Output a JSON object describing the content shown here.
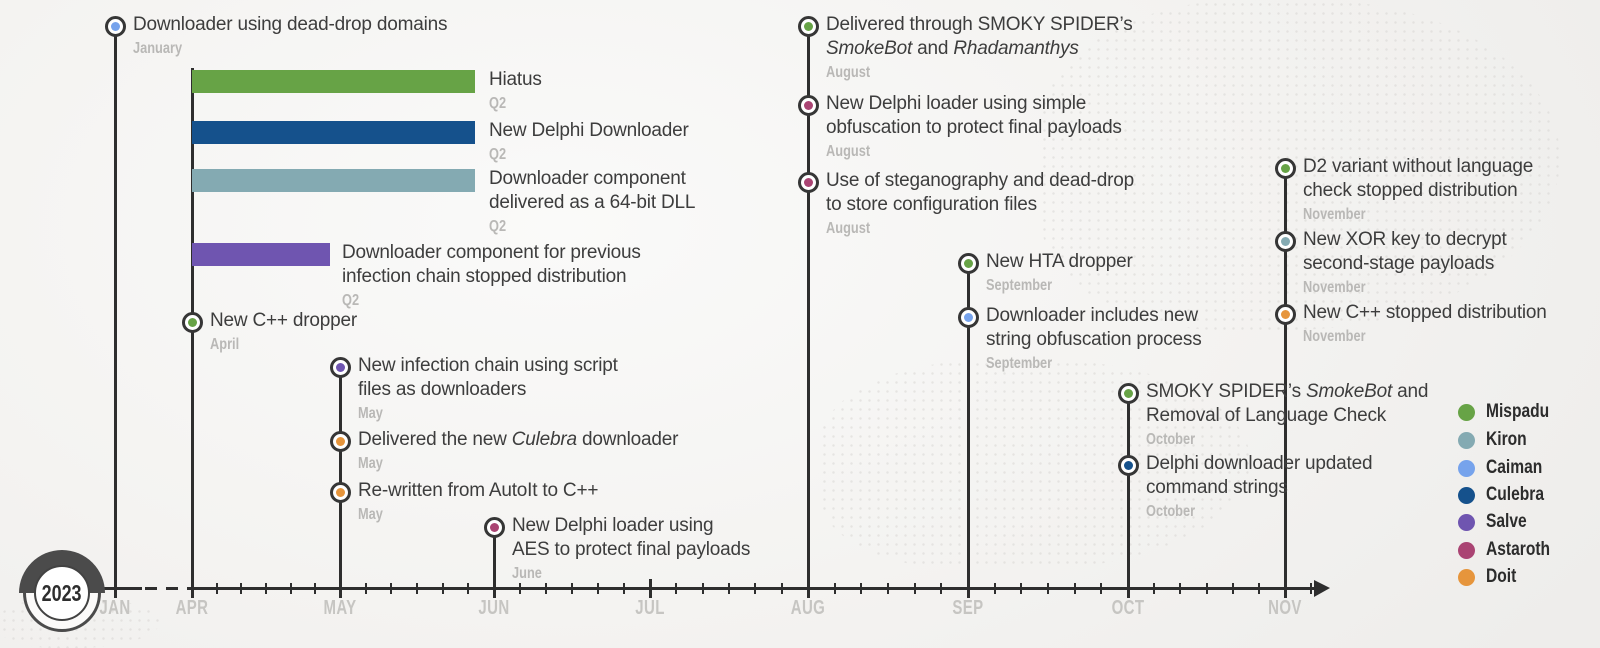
{
  "chart_data": {
    "type": "timeline",
    "year_badge": "2023",
    "x_axis": {
      "ticks": [
        "JAN",
        "APR",
        "MAY",
        "JUN",
        "JUL",
        "AUG",
        "SEP",
        "OCT",
        "NOV"
      ],
      "axis_break": "dashed segment between JAN and APR",
      "minor_ticks_between_months": 5,
      "arrow_end": "right"
    },
    "legend": {
      "position": "right",
      "entries": [
        {
          "name": "Mispadu",
          "color": "#67A346"
        },
        {
          "name": "Kiron",
          "color": "#84AAB2"
        },
        {
          "name": "Caiman",
          "color": "#76A3EC"
        },
        {
          "name": "Culebra",
          "color": "#15518C"
        },
        {
          "name": "Salve",
          "color": "#6F55B0"
        },
        {
          "name": "Astaroth",
          "color": "#AA4473"
        },
        {
          "name": "Doit",
          "color": "#E6953C"
        }
      ]
    },
    "spans": [
      {
        "label": "Hiatus",
        "period": "Q2",
        "family": "Mispadu",
        "color": "#67A346",
        "start": "APR",
        "end": "JUN"
      },
      {
        "label": "New Delphi Downloader",
        "period": "Q2",
        "family": "Culebra",
        "color": "#15518C",
        "start": "APR",
        "end": "JUN"
      },
      {
        "label": "Downloader component\ndelivered as a 64-bit DLL",
        "period": "Q2",
        "family": "Kiron",
        "color": "#84AAB2",
        "start": "APR",
        "end": "JUN"
      },
      {
        "label": "Downloader component for previous\ninfection chain stopped distribution",
        "period": "Q2",
        "family": "Salve",
        "color": "#6F55B0",
        "start": "APR",
        "end": "MAY"
      }
    ],
    "events": [
      {
        "month": "January",
        "family": "Caiman",
        "color": "#76A3EC",
        "parts": [
          {
            "t": "Downloader using dead-drop domains",
            "i": false
          }
        ]
      },
      {
        "month": "April",
        "family": "Mispadu",
        "color": "#67A346",
        "parts": [
          {
            "t": "New C++ dropper",
            "i": false
          }
        ]
      },
      {
        "month": "May",
        "family": "Salve",
        "color": "#6F55B0",
        "parts": [
          {
            "t": "New infection chain using script\nfiles as downloaders",
            "i": false
          }
        ]
      },
      {
        "month": "May",
        "family": "Doit",
        "color": "#E6953C",
        "parts": [
          {
            "t": "Delivered the new ",
            "i": false
          },
          {
            "t": "Culebra",
            "i": true
          },
          {
            "t": " downloader",
            "i": false
          }
        ]
      },
      {
        "month": "May",
        "family": "Doit",
        "color": "#E6953C",
        "parts": [
          {
            "t": "Re-written from AutoIt to C++",
            "i": false
          }
        ]
      },
      {
        "month": "June",
        "family": "Astaroth",
        "color": "#AA4473",
        "parts": [
          {
            "t": "New Delphi loader using\nAES to protect final payloads",
            "i": false
          }
        ]
      },
      {
        "month": "August",
        "family": "Mispadu",
        "color": "#67A346",
        "parts": [
          {
            "t": "Delivered through SMOKY SPIDER’s\n",
            "i": false
          },
          {
            "t": "SmokeBot",
            "i": true
          },
          {
            "t": " and ",
            "i": false
          },
          {
            "t": "Rhadamanthys",
            "i": true
          }
        ]
      },
      {
        "month": "August",
        "family": "Astaroth",
        "color": "#AA4473",
        "parts": [
          {
            "t": "New Delphi loader using simple\nobfuscation to protect final payloads",
            "i": false
          }
        ]
      },
      {
        "month": "August",
        "family": "Astaroth",
        "color": "#AA4473",
        "parts": [
          {
            "t": "Use of steganography and dead-drop\nto store configuration files",
            "i": false
          }
        ]
      },
      {
        "month": "September",
        "family": "Mispadu",
        "color": "#67A346",
        "parts": [
          {
            "t": "New HTA dropper",
            "i": false
          }
        ]
      },
      {
        "month": "September",
        "family": "Caiman",
        "color": "#76A3EC",
        "parts": [
          {
            "t": "Downloader includes new\nstring obfuscation process",
            "i": false
          }
        ]
      },
      {
        "month": "October",
        "family": "Mispadu",
        "color": "#67A346",
        "parts": [
          {
            "t": "SMOKY SPIDER’s ",
            "i": false
          },
          {
            "t": "SmokeBot",
            "i": true
          },
          {
            "t": " and\nRemoval of Language Check",
            "i": false
          }
        ]
      },
      {
        "month": "October",
        "family": "Culebra",
        "color": "#15518C",
        "parts": [
          {
            "t": "Delphi downloader updated\ncommand strings",
            "i": false
          }
        ]
      },
      {
        "month": "November",
        "family": "Mispadu",
        "color": "#67A346",
        "parts": [
          {
            "t": "D2 variant without language\ncheck stopped distribution",
            "i": false
          }
        ]
      },
      {
        "month": "November",
        "family": "Kiron",
        "color": "#84AAB2",
        "parts": [
          {
            "t": "New XOR key to decrypt\nsecond-stage payloads",
            "i": false
          }
        ]
      },
      {
        "month": "November",
        "family": "Doit",
        "color": "#E6953C",
        "parts": [
          {
            "t": "New C++ stopped distribution",
            "i": false
          }
        ]
      }
    ]
  }
}
